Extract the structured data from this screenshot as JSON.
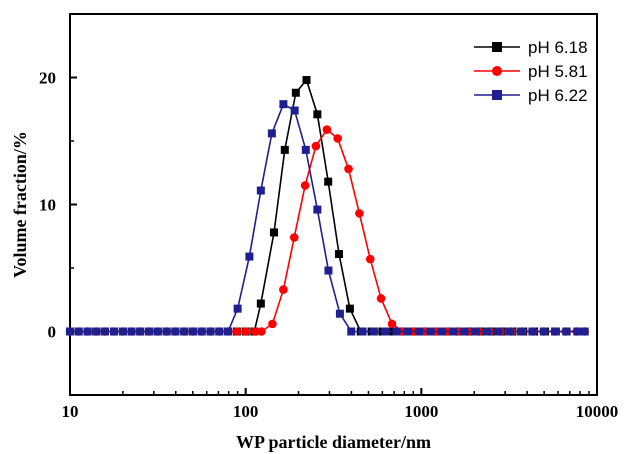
{
  "chart_data": {
    "type": "line",
    "xlabel": "WP particle diameter/nm",
    "ylabel": "Volume fraction/%",
    "x_scale": "log",
    "xlim": [
      10,
      10000
    ],
    "ylim": [
      -5,
      25
    ],
    "x_ticks": [
      10,
      100,
      1000,
      10000
    ],
    "x_tick_labels": [
      "10",
      "100",
      "1000",
      "10000"
    ],
    "y_ticks": [
      0,
      10,
      20
    ],
    "y_tick_labels": [
      "0",
      "10",
      "20"
    ],
    "grid": false,
    "legend_position": "top-right",
    "series": [
      {
        "name": "pH 6.18",
        "color": "#000000",
        "marker": "square",
        "points": [
          [
            10,
            0
          ],
          [
            11.2,
            0
          ],
          [
            12.6,
            0
          ],
          [
            14.1,
            0
          ],
          [
            15.8,
            0
          ],
          [
            17.8,
            0
          ],
          [
            20,
            0
          ],
          [
            22.4,
            0
          ],
          [
            25.1,
            0
          ],
          [
            28.2,
            0
          ],
          [
            31.6,
            0
          ],
          [
            35.5,
            0
          ],
          [
            39.8,
            0
          ],
          [
            44.7,
            0
          ],
          [
            50.1,
            0
          ],
          [
            56.2,
            0
          ],
          [
            63.1,
            0
          ],
          [
            70.8,
            0
          ],
          [
            79.4,
            0
          ],
          [
            89.1,
            0
          ],
          [
            100,
            0
          ],
          [
            112,
            0
          ],
          [
            122,
            2.2
          ],
          [
            145,
            7.8
          ],
          [
            167,
            14.3
          ],
          [
            193,
            18.8
          ],
          [
            222,
            19.8
          ],
          [
            256,
            17.1
          ],
          [
            295,
            11.8
          ],
          [
            340,
            6.1
          ],
          [
            392,
            1.8
          ],
          [
            452,
            0
          ],
          [
            521,
            0
          ],
          [
            600,
            0
          ],
          [
            692,
            0
          ],
          [
            797,
            0
          ],
          [
            919,
            0
          ],
          [
            1059,
            0
          ],
          [
            1221,
            0
          ],
          [
            1407,
            0
          ],
          [
            1622,
            0
          ],
          [
            1870,
            0
          ],
          [
            2155,
            0
          ],
          [
            2484,
            0
          ],
          [
            2864,
            0
          ],
          [
            3301,
            0
          ],
          [
            3805,
            0
          ],
          [
            4385,
            0
          ],
          [
            5055,
            0
          ],
          [
            5826,
            0
          ],
          [
            6716,
            0
          ],
          [
            7741,
            0
          ],
          [
            8500,
            0
          ]
        ]
      },
      {
        "name": "pH 5.81",
        "color": "#ff0000",
        "marker": "circle",
        "points": [
          [
            10,
            0
          ],
          [
            11.2,
            0
          ],
          [
            12.6,
            0
          ],
          [
            14.1,
            0
          ],
          [
            15.8,
            0
          ],
          [
            17.8,
            0
          ],
          [
            20,
            0
          ],
          [
            22.4,
            0
          ],
          [
            25.1,
            0
          ],
          [
            28.2,
            0
          ],
          [
            31.6,
            0
          ],
          [
            35.5,
            0
          ],
          [
            39.8,
            0
          ],
          [
            44.7,
            0
          ],
          [
            50.1,
            0
          ],
          [
            56.2,
            0
          ],
          [
            63.1,
            0
          ],
          [
            70.8,
            0
          ],
          [
            79.4,
            0
          ],
          [
            89.1,
            0
          ],
          [
            100,
            0
          ],
          [
            113,
            0
          ],
          [
            123,
            0
          ],
          [
            142,
            0.6
          ],
          [
            164,
            3.3
          ],
          [
            189,
            7.4
          ],
          [
            218,
            11.5
          ],
          [
            251,
            14.6
          ],
          [
            290,
            15.9
          ],
          [
            334,
            15.2
          ],
          [
            385,
            12.8
          ],
          [
            444,
            9.3
          ],
          [
            512,
            5.7
          ],
          [
            590,
            2.6
          ],
          [
            681,
            0.6
          ],
          [
            785,
            0
          ],
          [
            905,
            0
          ],
          [
            1043,
            0
          ],
          [
            1203,
            0
          ],
          [
            1387,
            0
          ],
          [
            1599,
            0
          ],
          [
            1843,
            0
          ],
          [
            2125,
            0
          ],
          [
            2449,
            0
          ],
          [
            2824,
            0
          ],
          [
            3255,
            0
          ],
          [
            3753,
            0
          ],
          [
            4326,
            0
          ],
          [
            4987,
            0
          ],
          [
            5749,
            0
          ],
          [
            6628,
            0
          ],
          [
            7641,
            0
          ],
          [
            8500,
            0
          ]
        ]
      },
      {
        "name": "pH 6.22",
        "color": "#1f1f8f",
        "marker": "square",
        "points": [
          [
            10,
            0
          ],
          [
            11.2,
            0
          ],
          [
            12.6,
            0
          ],
          [
            14.1,
            0
          ],
          [
            15.8,
            0
          ],
          [
            17.8,
            0
          ],
          [
            20,
            0
          ],
          [
            22.4,
            0
          ],
          [
            25.1,
            0
          ],
          [
            28.2,
            0
          ],
          [
            31.6,
            0
          ],
          [
            35.5,
            0
          ],
          [
            39.8,
            0
          ],
          [
            44.7,
            0
          ],
          [
            50.1,
            0
          ],
          [
            56.2,
            0
          ],
          [
            63.1,
            0
          ],
          [
            70.8,
            0
          ],
          [
            79.4,
            0
          ],
          [
            90,
            1.8
          ],
          [
            105,
            5.9
          ],
          [
            122,
            11.1
          ],
          [
            141,
            15.6
          ],
          [
            164,
            17.9
          ],
          [
            190,
            17.4
          ],
          [
            220,
            14.3
          ],
          [
            256,
            9.6
          ],
          [
            296,
            4.8
          ],
          [
            344,
            1.4
          ],
          [
            399,
            0
          ],
          [
            463,
            0
          ],
          [
            537,
            0
          ],
          [
            623,
            0
          ],
          [
            723,
            0
          ],
          [
            838,
            0
          ],
          [
            972,
            0
          ],
          [
            1128,
            0
          ],
          [
            1308,
            0
          ],
          [
            1517,
            0
          ],
          [
            1760,
            0
          ],
          [
            2042,
            0
          ],
          [
            2368,
            0
          ],
          [
            2747,
            0
          ],
          [
            3187,
            0
          ],
          [
            3696,
            0
          ],
          [
            4288,
            0
          ],
          [
            4973,
            0
          ],
          [
            5769,
            0
          ],
          [
            6692,
            0
          ],
          [
            7763,
            0
          ],
          [
            8500,
            0
          ]
        ]
      }
    ]
  }
}
